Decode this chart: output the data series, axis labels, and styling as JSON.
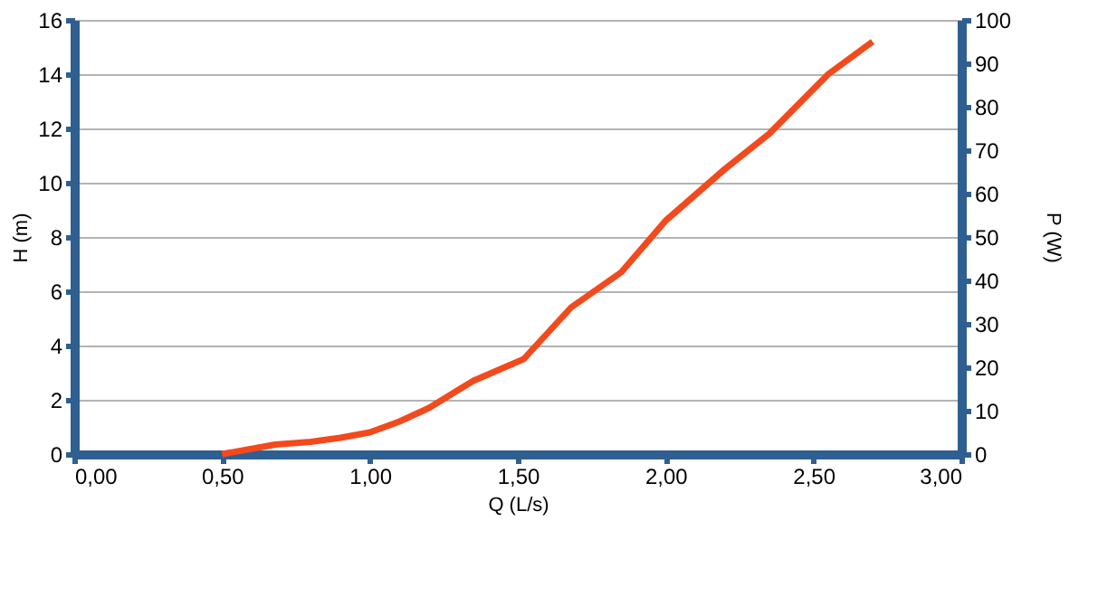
{
  "chart_data": {
    "type": "line",
    "xlabel": "Q (L/s)",
    "ylabel": "H (m)",
    "y2label": "P (W)",
    "x": [
      0.5,
      0.68,
      0.8,
      0.9,
      1.0,
      1.1,
      1.2,
      1.35,
      1.52,
      1.68,
      1.85,
      2.0,
      2.2,
      2.35,
      2.55,
      2.7
    ],
    "series": [
      {
        "color": "#f24a1d",
        "values": [
          0,
          0.35,
          0.45,
          0.6,
          0.8,
          1.2,
          1.7,
          2.7,
          3.5,
          5.4,
          6.7,
          8.6,
          10.5,
          11.8,
          14.0,
          15.2
        ]
      }
    ],
    "xlim": [
      0,
      3
    ],
    "xticks": [
      {
        "value": 0,
        "label": "0,00"
      },
      {
        "value": 0.5,
        "label": "0,50"
      },
      {
        "value": 1,
        "label": "1,00"
      },
      {
        "value": 1.5,
        "label": "1,50"
      },
      {
        "value": 2,
        "label": "2,00"
      },
      {
        "value": 2.5,
        "label": "2,50"
      },
      {
        "value": 3,
        "label": "3,00"
      }
    ],
    "ylim": [
      0,
      16
    ],
    "yticks": [
      0,
      2,
      4,
      6,
      8,
      10,
      12,
      14,
      16
    ],
    "y2lim": [
      0,
      100
    ],
    "y2ticks": [
      0,
      10,
      20,
      30,
      40,
      50,
      60,
      70,
      80,
      90,
      100
    ],
    "grid": "y",
    "marker": "none",
    "line_style": "solid"
  }
}
